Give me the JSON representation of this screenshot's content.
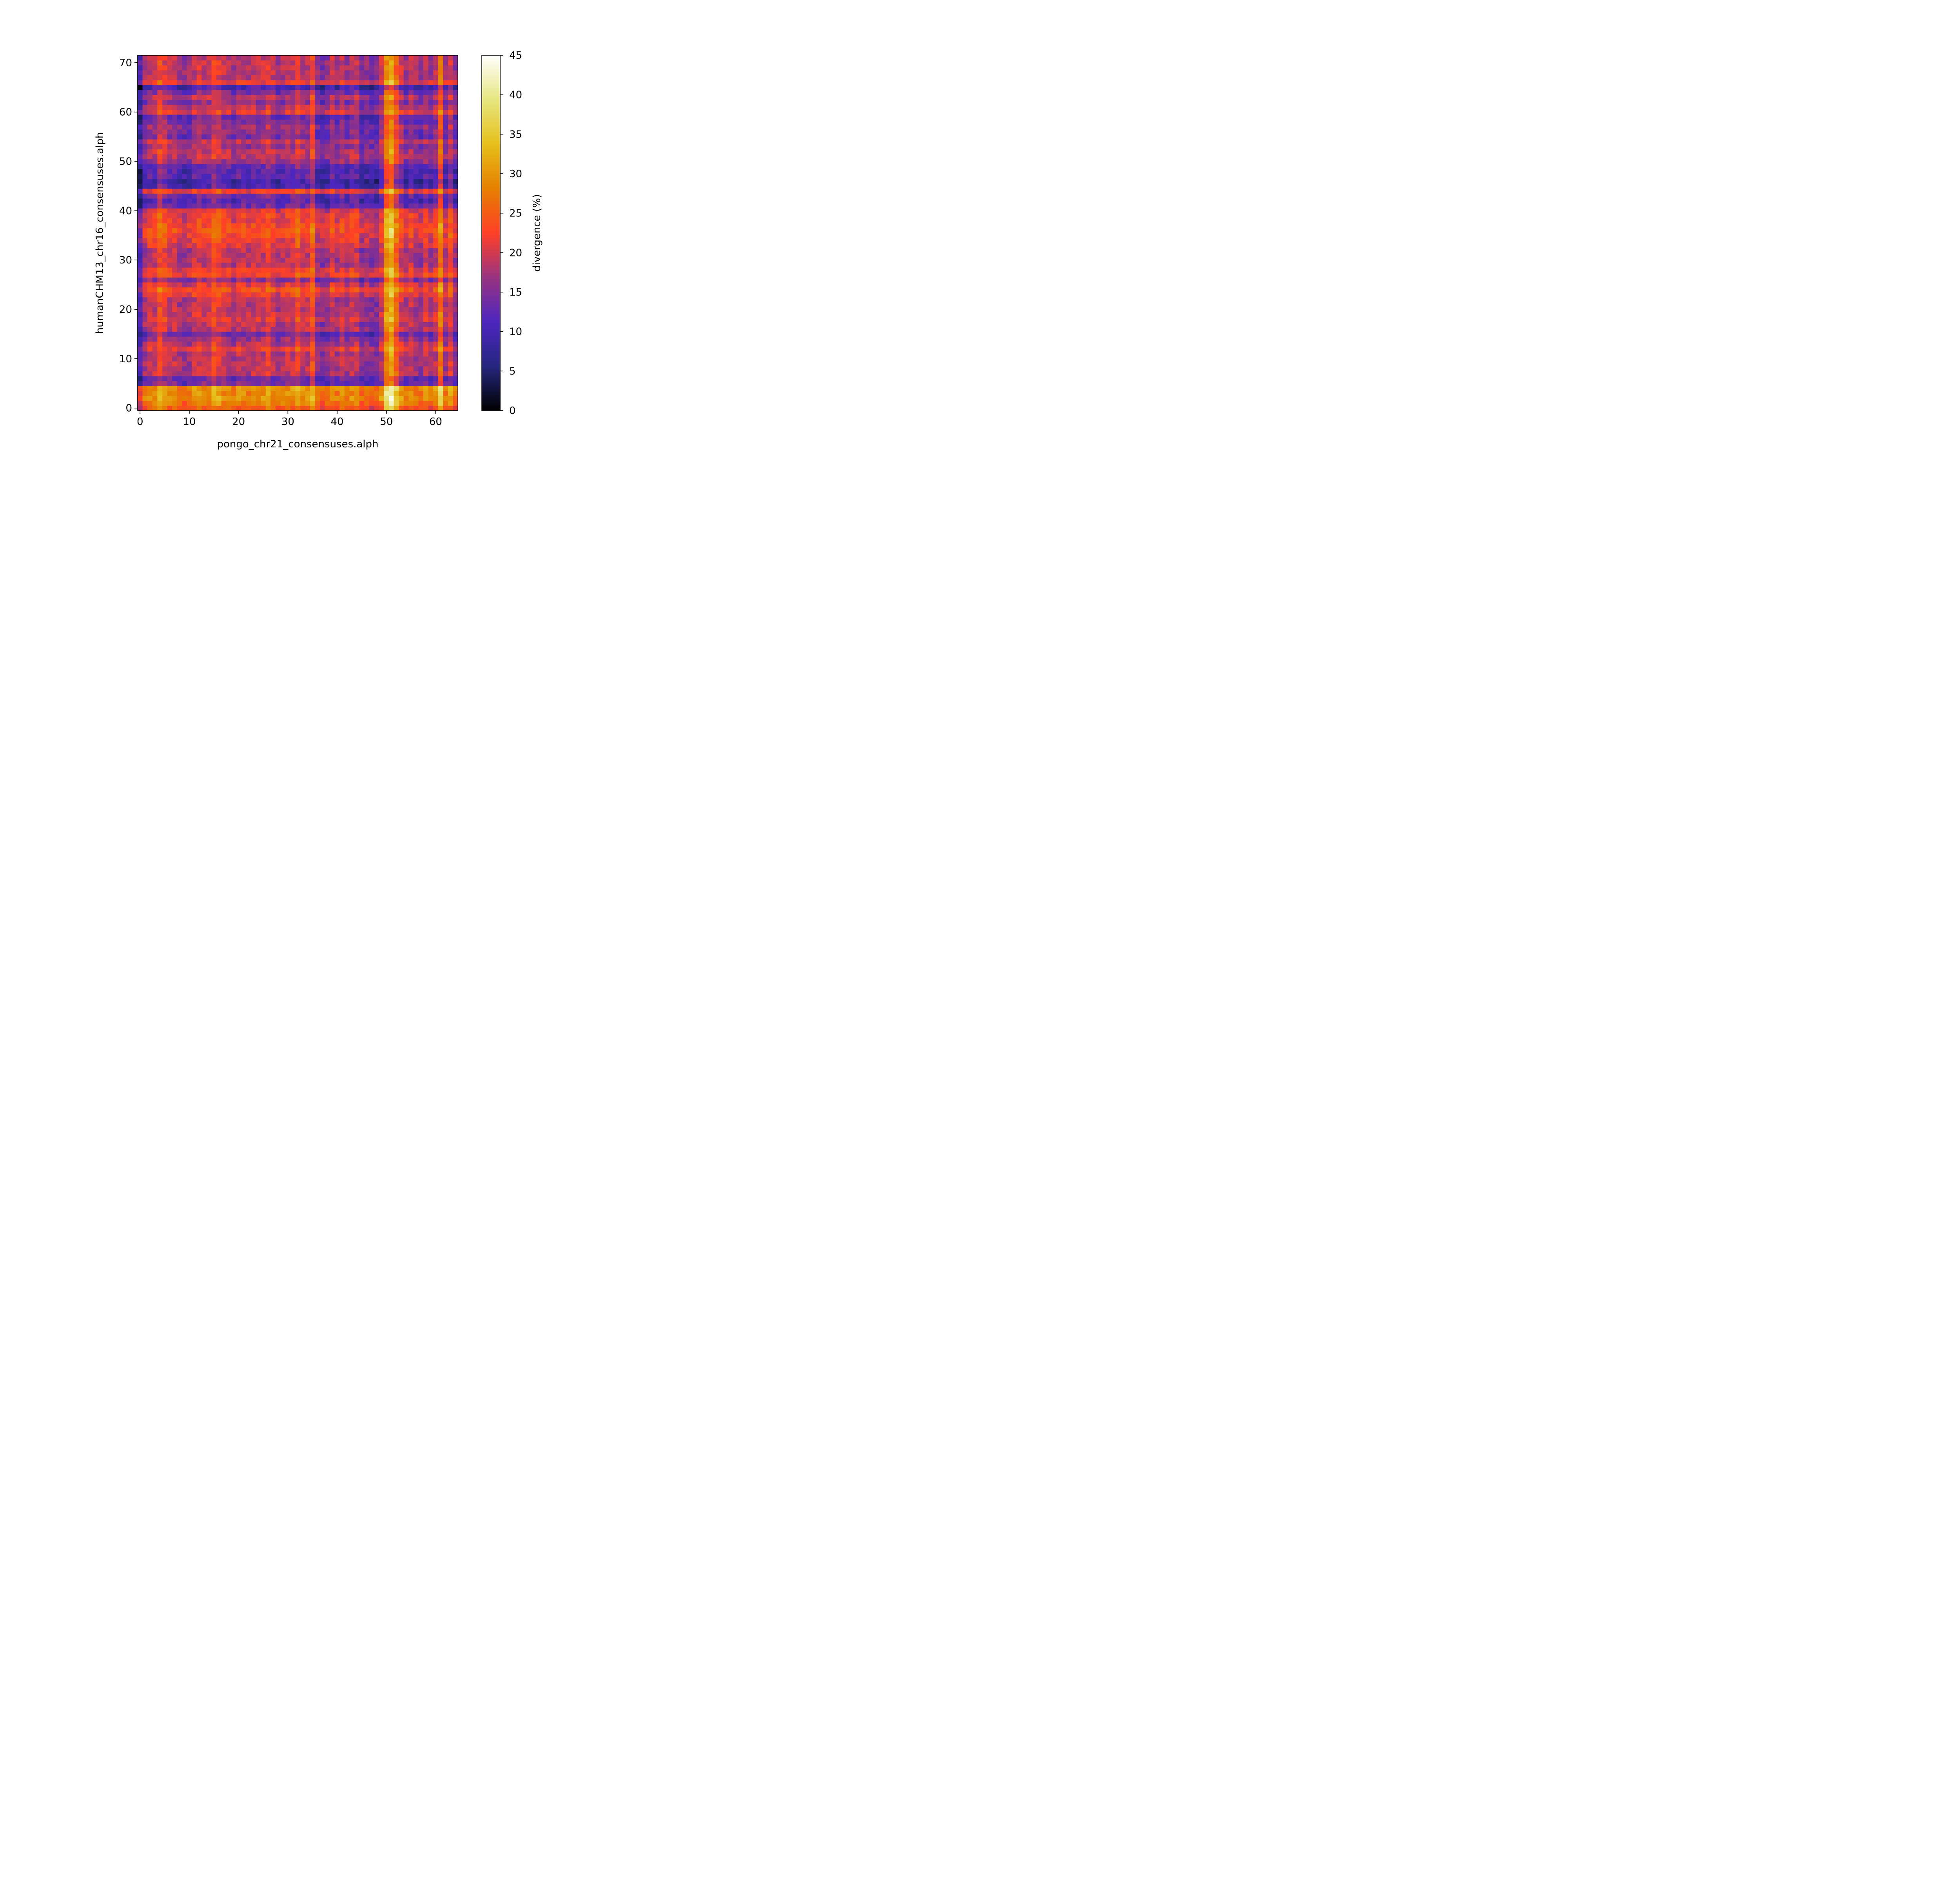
{
  "chart_data": {
    "type": "heatmap",
    "title": "",
    "xlabel": "pongo_chr21_consensuses.alph",
    "ylabel": "humanCHM13_chr16_consensuses.alph",
    "x_count": 65,
    "y_count": 72,
    "x_range": [
      0,
      64
    ],
    "y_range": [
      0,
      71
    ],
    "x_ticks": [
      0,
      10,
      20,
      30,
      40,
      50,
      60
    ],
    "y_ticks": [
      0,
      10,
      20,
      30,
      40,
      50,
      60,
      70
    ],
    "colorbar": {
      "label": "divergence (%)",
      "range": [
        0,
        45
      ],
      "ticks": [
        0,
        5,
        10,
        15,
        20,
        25,
        30,
        35,
        40,
        45
      ],
      "colormap": "CMRmap"
    },
    "value_model": {
      "base_divergence": 19,
      "row_effects": [
        {
          "rows": [
            0
          ],
          "value": 6
        },
        {
          "rows": [
            1
          ],
          "value": 9
        },
        {
          "rows": [
            2
          ],
          "value": 11
        },
        {
          "rows": [
            3
          ],
          "value": 10
        },
        {
          "rows": [
            4
          ],
          "value": 11
        },
        {
          "rows": [
            5
          ],
          "value": -4
        },
        {
          "rows": [
            6
          ],
          "value": -5
        },
        {
          "rows": [
            12
          ],
          "value": 3
        },
        {
          "rows": [
            14
          ],
          "value": -2
        },
        {
          "rows": [
            15
          ],
          "value": -5
        },
        {
          "rows": [
            18
          ],
          "value": 2
        },
        {
          "rows": [
            19
          ],
          "value": 1
        },
        {
          "rows": [
            23
          ],
          "value": 3
        },
        {
          "rows": [
            24
          ],
          "value": 5
        },
        {
          "rows": [
            25
          ],
          "value": 2
        },
        {
          "rows": [
            26
          ],
          "value": -3
        },
        {
          "rows": [
            27
          ],
          "value": 4
        },
        {
          "rows": [
            28
          ],
          "value": 3
        },
        {
          "rows": [
            33
          ],
          "value": 2
        },
        {
          "rows": [
            34
          ],
          "value": 3
        },
        {
          "rows": [
            35
          ],
          "value": 4
        },
        {
          "rows": [
            36
          ],
          "value": 5
        },
        {
          "rows": [
            37
          ],
          "value": 4
        },
        {
          "rows": [
            38
          ],
          "value": 3
        },
        {
          "rows": [
            39
          ],
          "value": 3
        },
        {
          "rows": [
            40
          ],
          "value": 2
        },
        {
          "rows": [
            41
          ],
          "value": -5
        },
        {
          "rows": [
            42
          ],
          "value": -7
        },
        {
          "rows": [
            43
          ],
          "value": -5
        },
        {
          "rows": [
            44
          ],
          "value": 3
        },
        {
          "rows": [
            45
          ],
          "value": -8
        },
        {
          "rows": [
            46
          ],
          "value": -9
        },
        {
          "rows": [
            47
          ],
          "value": -6
        },
        {
          "rows": [
            48
          ],
          "value": -7
        },
        {
          "rows": [
            49
          ],
          "value": -6
        },
        {
          "rows": [
            50
          ],
          "value": -2
        },
        {
          "rows": [
            53
          ],
          "value": -2
        },
        {
          "rows": [
            55
          ],
          "value": -4
        },
        {
          "rows": [
            56
          ],
          "value": -3
        },
        {
          "rows": [
            57
          ],
          "value": -2
        },
        {
          "rows": [
            58
          ],
          "value": -4
        },
        {
          "rows": [
            59
          ],
          "value": -5
        },
        {
          "rows": [
            60
          ],
          "value": 2
        },
        {
          "rows": [
            62
          ],
          "value": -3
        },
        {
          "rows": [
            64
          ],
          "value": -4
        },
        {
          "rows": [
            65
          ],
          "value": -8
        },
        {
          "rows": [
            66
          ],
          "value": 3
        }
      ],
      "col_effects": [
        {
          "cols": [
            0
          ],
          "value": -8
        },
        {
          "cols": [
            1
          ],
          "value": -2
        },
        {
          "cols": [
            4
          ],
          "value": 4
        },
        {
          "cols": [
            5
          ],
          "value": 2
        },
        {
          "cols": [
            8
          ],
          "value": -2
        },
        {
          "cols": [
            9
          ],
          "value": -3
        },
        {
          "cols": [
            10
          ],
          "value": -2
        },
        {
          "cols": [
            12
          ],
          "value": 1
        },
        {
          "cols": [
            15
          ],
          "value": 3
        },
        {
          "cols": [
            16
          ],
          "value": 2
        },
        {
          "cols": [
            19
          ],
          "value": -2
        },
        {
          "cols": [
            22
          ],
          "value": -1
        },
        {
          "cols": [
            26
          ],
          "value": 2
        },
        {
          "cols": [
            28
          ],
          "value": -2
        },
        {
          "cols": [
            29
          ],
          "value": -1
        },
        {
          "cols": [
            32
          ],
          "value": 3
        },
        {
          "cols": [
            35
          ],
          "value": 4
        },
        {
          "cols": [
            36
          ],
          "value": -3
        },
        {
          "cols": [
            37
          ],
          "value": -4
        },
        {
          "cols": [
            38
          ],
          "value": -3
        },
        {
          "cols": [
            40
          ],
          "value": -2
        },
        {
          "cols": [
            42
          ],
          "value": -2
        },
        {
          "cols": [
            45
          ],
          "value": -4
        },
        {
          "cols": [
            46
          ],
          "value": -3
        },
        {
          "cols": [
            47
          ],
          "value": -4
        },
        {
          "cols": [
            48
          ],
          "value": -4
        },
        {
          "cols": [
            50
          ],
          "value": 10
        },
        {
          "cols": [
            51
          ],
          "value": 13
        },
        {
          "cols": [
            52
          ],
          "value": 6
        },
        {
          "cols": [
            53
          ],
          "value": 1
        },
        {
          "cols": [
            54
          ],
          "value": -2
        },
        {
          "cols": [
            56
          ],
          "value": -2
        },
        {
          "cols": [
            57
          ],
          "value": -3
        },
        {
          "cols": [
            59
          ],
          "value": -2
        },
        {
          "cols": [
            61
          ],
          "value": 8
        },
        {
          "cols": [
            62
          ],
          "value": -2
        },
        {
          "cols": [
            63
          ],
          "value": 2
        },
        {
          "cols": [
            64
          ],
          "value": -3
        }
      ],
      "noise_amplitude": 2.5
    }
  }
}
